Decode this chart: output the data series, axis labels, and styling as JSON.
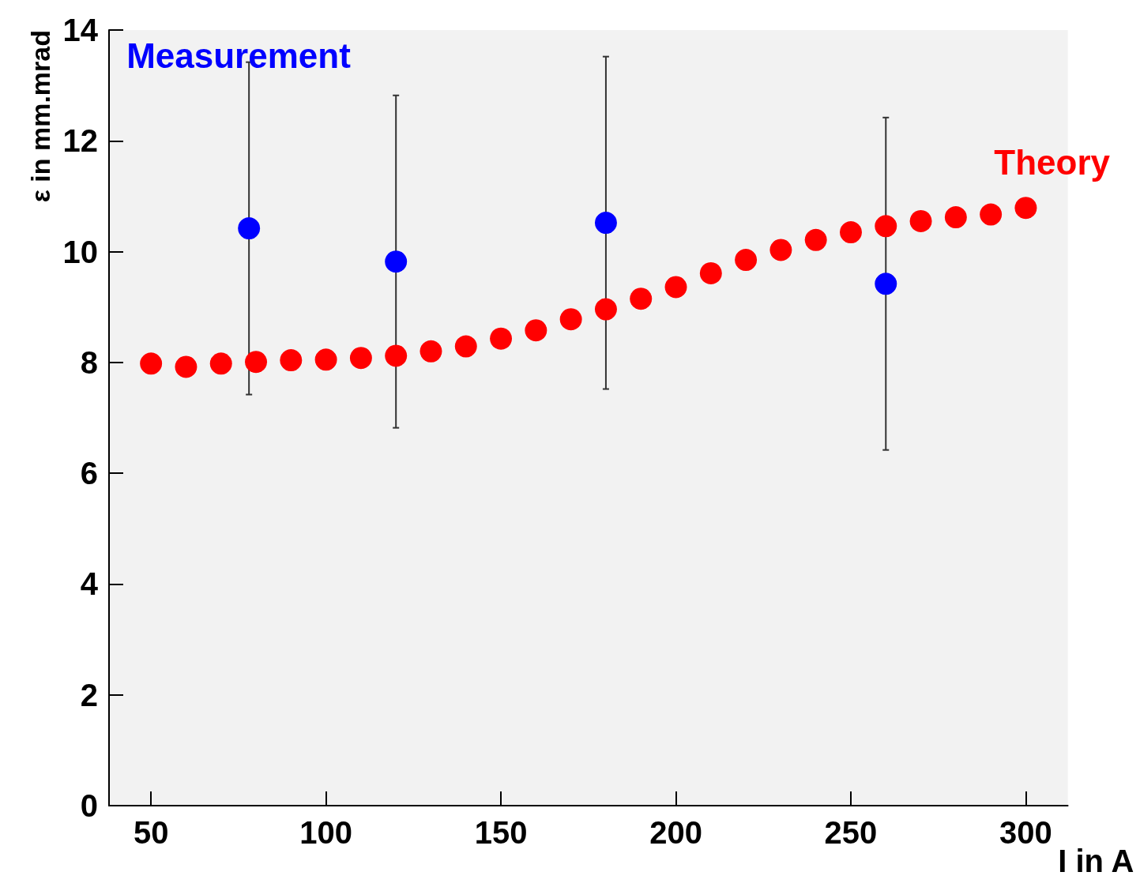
{
  "chart_data": {
    "type": "scatter",
    "xlabel": "I in A",
    "ylabel": "ε in mm.mrad",
    "xlim": [
      38,
      312
    ],
    "xticks": [
      50,
      100,
      150,
      200,
      250,
      300
    ],
    "ylim": [
      0,
      14
    ],
    "yticks": [
      0,
      2,
      4,
      6,
      8,
      10,
      12,
      14
    ],
    "grid": false,
    "marker": "circle",
    "series": [
      {
        "name": "Measurement",
        "color": "#0000ff",
        "x": [
          78,
          120,
          180,
          260
        ],
        "values": [
          10.42,
          9.82,
          10.52,
          9.42
        ],
        "errors": [
          3,
          3,
          3,
          3
        ]
      },
      {
        "name": "Theory",
        "color": "#ff0000",
        "x": [
          50,
          60,
          70,
          80,
          90,
          100,
          110,
          120,
          130,
          140,
          150,
          160,
          170,
          180,
          190,
          200,
          210,
          220,
          230,
          240,
          250,
          260,
          270,
          280,
          290,
          300
        ],
        "values": [
          7.98,
          7.92,
          7.98,
          8.01,
          8.04,
          8.05,
          8.08,
          8.12,
          8.2,
          8.29,
          8.43,
          8.58,
          8.78,
          8.96,
          9.15,
          9.36,
          9.61,
          9.85,
          10.03,
          10.21,
          10.35,
          10.46,
          10.55,
          10.62,
          10.67,
          10.79
        ]
      }
    ]
  }
}
